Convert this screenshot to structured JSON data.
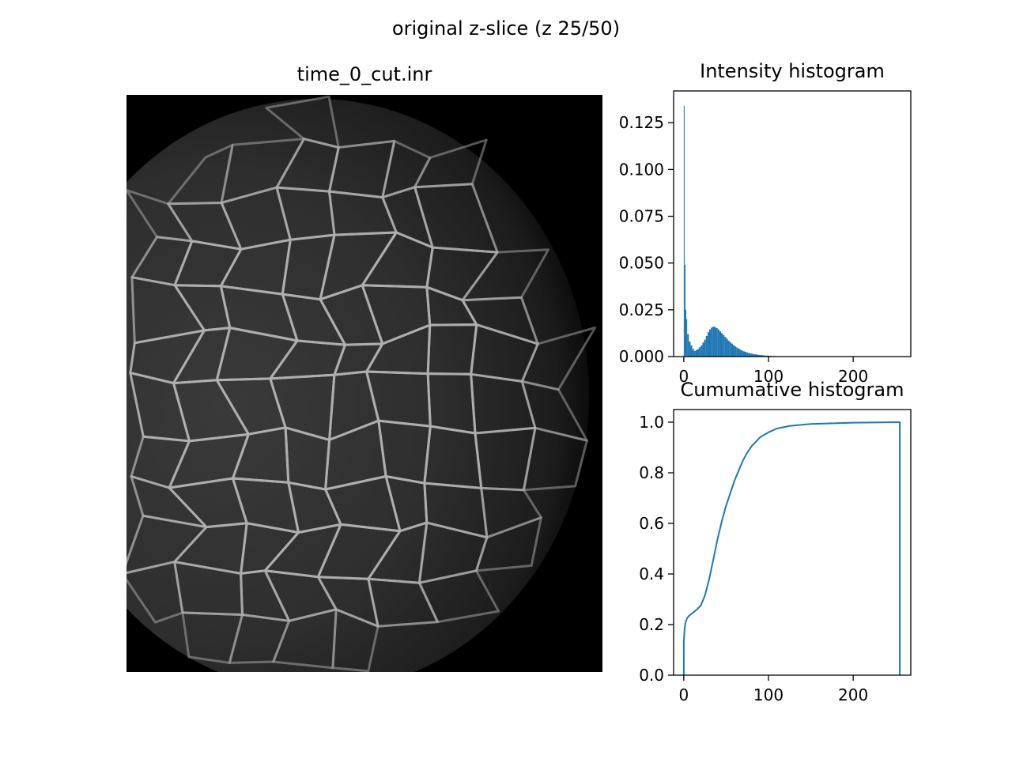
{
  "figure": {
    "suptitle": "original z-slice (z 25/50)"
  },
  "image_panel": {
    "title": "time_0_cut.inr",
    "content": "grayscale fluorescence micrograph of cell membranes"
  },
  "chart_data": [
    {
      "type": "bar",
      "title": "Intensity histogram",
      "xlabel": "",
      "ylabel": "",
      "xlim": [
        -12,
        268
      ],
      "ylim": [
        0,
        0.142
      ],
      "xticks": [
        "0",
        "100",
        "200"
      ],
      "yticks": [
        "0.000",
        "0.025",
        "0.050",
        "0.075",
        "0.100",
        "0.125"
      ],
      "series": [
        {
          "points": [
            [
              0,
              0.134
            ],
            [
              1,
              0.049
            ],
            [
              2,
              0.025
            ],
            [
              3,
              0.02
            ],
            [
              4,
              0.012
            ],
            [
              6,
              0.008
            ],
            [
              8,
              0.006
            ],
            [
              10,
              0.004
            ],
            [
              12,
              0.003
            ],
            [
              14,
              0.0035
            ],
            [
              16,
              0.004
            ],
            [
              18,
              0.005
            ],
            [
              20,
              0.006
            ],
            [
              22,
              0.0075
            ],
            [
              24,
              0.009
            ],
            [
              26,
              0.011
            ],
            [
              28,
              0.013
            ],
            [
              30,
              0.0145
            ],
            [
              32,
              0.0155
            ],
            [
              34,
              0.016
            ],
            [
              36,
              0.0158
            ],
            [
              38,
              0.0152
            ],
            [
              40,
              0.0145
            ],
            [
              42,
              0.0135
            ],
            [
              44,
              0.0125
            ],
            [
              46,
              0.0115
            ],
            [
              48,
              0.0105
            ],
            [
              50,
              0.0095
            ],
            [
              52,
              0.0085
            ],
            [
              54,
              0.0077
            ],
            [
              56,
              0.0069
            ],
            [
              58,
              0.0061
            ],
            [
              60,
              0.0054
            ],
            [
              62,
              0.0048
            ],
            [
              64,
              0.0042
            ],
            [
              66,
              0.0037
            ],
            [
              68,
              0.0032
            ],
            [
              70,
              0.0028
            ],
            [
              72,
              0.0025
            ],
            [
              74,
              0.0022
            ],
            [
              76,
              0.0019
            ],
            [
              78,
              0.0017
            ],
            [
              80,
              0.0015
            ],
            [
              82,
              0.0013
            ],
            [
              84,
              0.0012
            ],
            [
              86,
              0.001
            ],
            [
              88,
              0.0009
            ],
            [
              90,
              0.0008
            ],
            [
              92,
              0.0007
            ],
            [
              94,
              0.0006
            ],
            [
              96,
              0.0005
            ],
            [
              98,
              0.0005
            ],
            [
              100,
              0.0004
            ],
            [
              102,
              0.0004
            ],
            [
              104,
              0.0003
            ],
            [
              106,
              0.0003
            ],
            [
              108,
              0.0002
            ],
            [
              110,
              0.0002
            ],
            [
              112,
              0.0002
            ],
            [
              114,
              0.0001
            ],
            [
              116,
              0.0001
            ],
            [
              118,
              0.0001
            ],
            [
              120,
              0.0001
            ]
          ]
        }
      ],
      "color": "#1f77b4"
    },
    {
      "type": "line",
      "title": "Cumumative histogram",
      "xlabel": "",
      "ylabel": "",
      "xlim": [
        -12,
        268
      ],
      "ylim": [
        0,
        1.05
      ],
      "xticks": [
        "0",
        "100",
        "200"
      ],
      "yticks": [
        "0.0",
        "0.2",
        "0.4",
        "0.6",
        "0.8",
        "1.0"
      ],
      "series": [
        {
          "points": [
            [
              0,
              0
            ],
            [
              0,
              0.134
            ],
            [
              1,
              0.183
            ],
            [
              2,
              0.208
            ],
            [
              4,
              0.226
            ],
            [
              6,
              0.234
            ],
            [
              10,
              0.245
            ],
            [
              15,
              0.258
            ],
            [
              20,
              0.275
            ],
            [
              25,
              0.315
            ],
            [
              30,
              0.38
            ],
            [
              35,
              0.46
            ],
            [
              40,
              0.54
            ],
            [
              45,
              0.61
            ],
            [
              50,
              0.67
            ],
            [
              55,
              0.72
            ],
            [
              60,
              0.77
            ],
            [
              65,
              0.81
            ],
            [
              70,
              0.85
            ],
            [
              75,
              0.88
            ],
            [
              80,
              0.905
            ],
            [
              90,
              0.94
            ],
            [
              100,
              0.96
            ],
            [
              110,
              0.975
            ],
            [
              125,
              0.985
            ],
            [
              150,
              0.993
            ],
            [
              200,
              0.998
            ],
            [
              255,
              1.0
            ],
            [
              255,
              0
            ]
          ]
        }
      ],
      "color": "#1f77b4"
    }
  ]
}
